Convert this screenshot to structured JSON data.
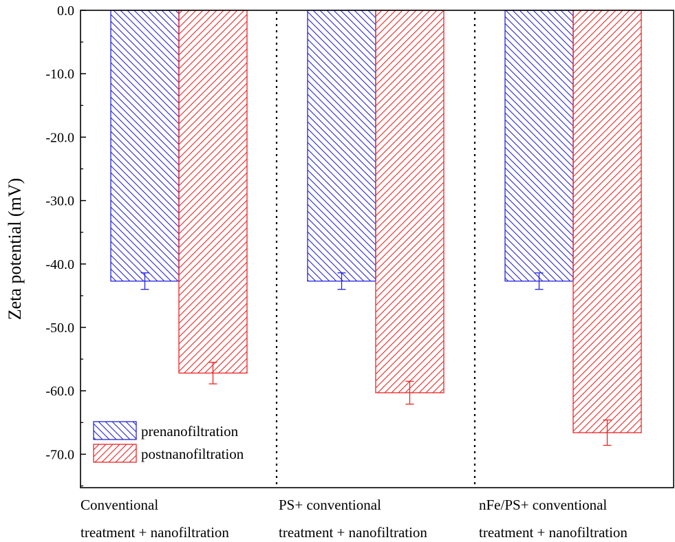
{
  "chart_data": {
    "type": "bar",
    "ylabel": "Zeta potential (mV)",
    "xlabel": "",
    "ylim": [
      -76.0,
      0.0
    ],
    "y_ticks": [
      0,
      -10,
      -20,
      -30,
      -40,
      -50,
      -60,
      -70
    ],
    "y_tick_labels": [
      "0.0",
      "-10.0",
      "-20.0",
      "-30.0",
      "-40.0",
      "-50.0",
      "-60.0",
      "-70.0"
    ],
    "grid": false,
    "legend_position": "bottom-left",
    "categories": [
      [
        "Conventional",
        "treatment + nanofiltration"
      ],
      [
        "PS+ conventional",
        "treatment + nanofiltration"
      ],
      [
        "nFe/PS+ conventional",
        "treatment + nanofiltration"
      ]
    ],
    "series": [
      {
        "name": "prenanofiltration",
        "color": "#2222dd",
        "hatch": "backslash",
        "values": [
          -42.7,
          -42.7,
          -42.7
        ],
        "errors": [
          1.3,
          1.3,
          1.3
        ]
      },
      {
        "name": "postnanofiltration",
        "color": "#ee2222",
        "hatch": "slash",
        "values": [
          -57.2,
          -60.3,
          -66.6
        ],
        "errors": [
          1.7,
          1.8,
          2.0
        ]
      }
    ]
  }
}
